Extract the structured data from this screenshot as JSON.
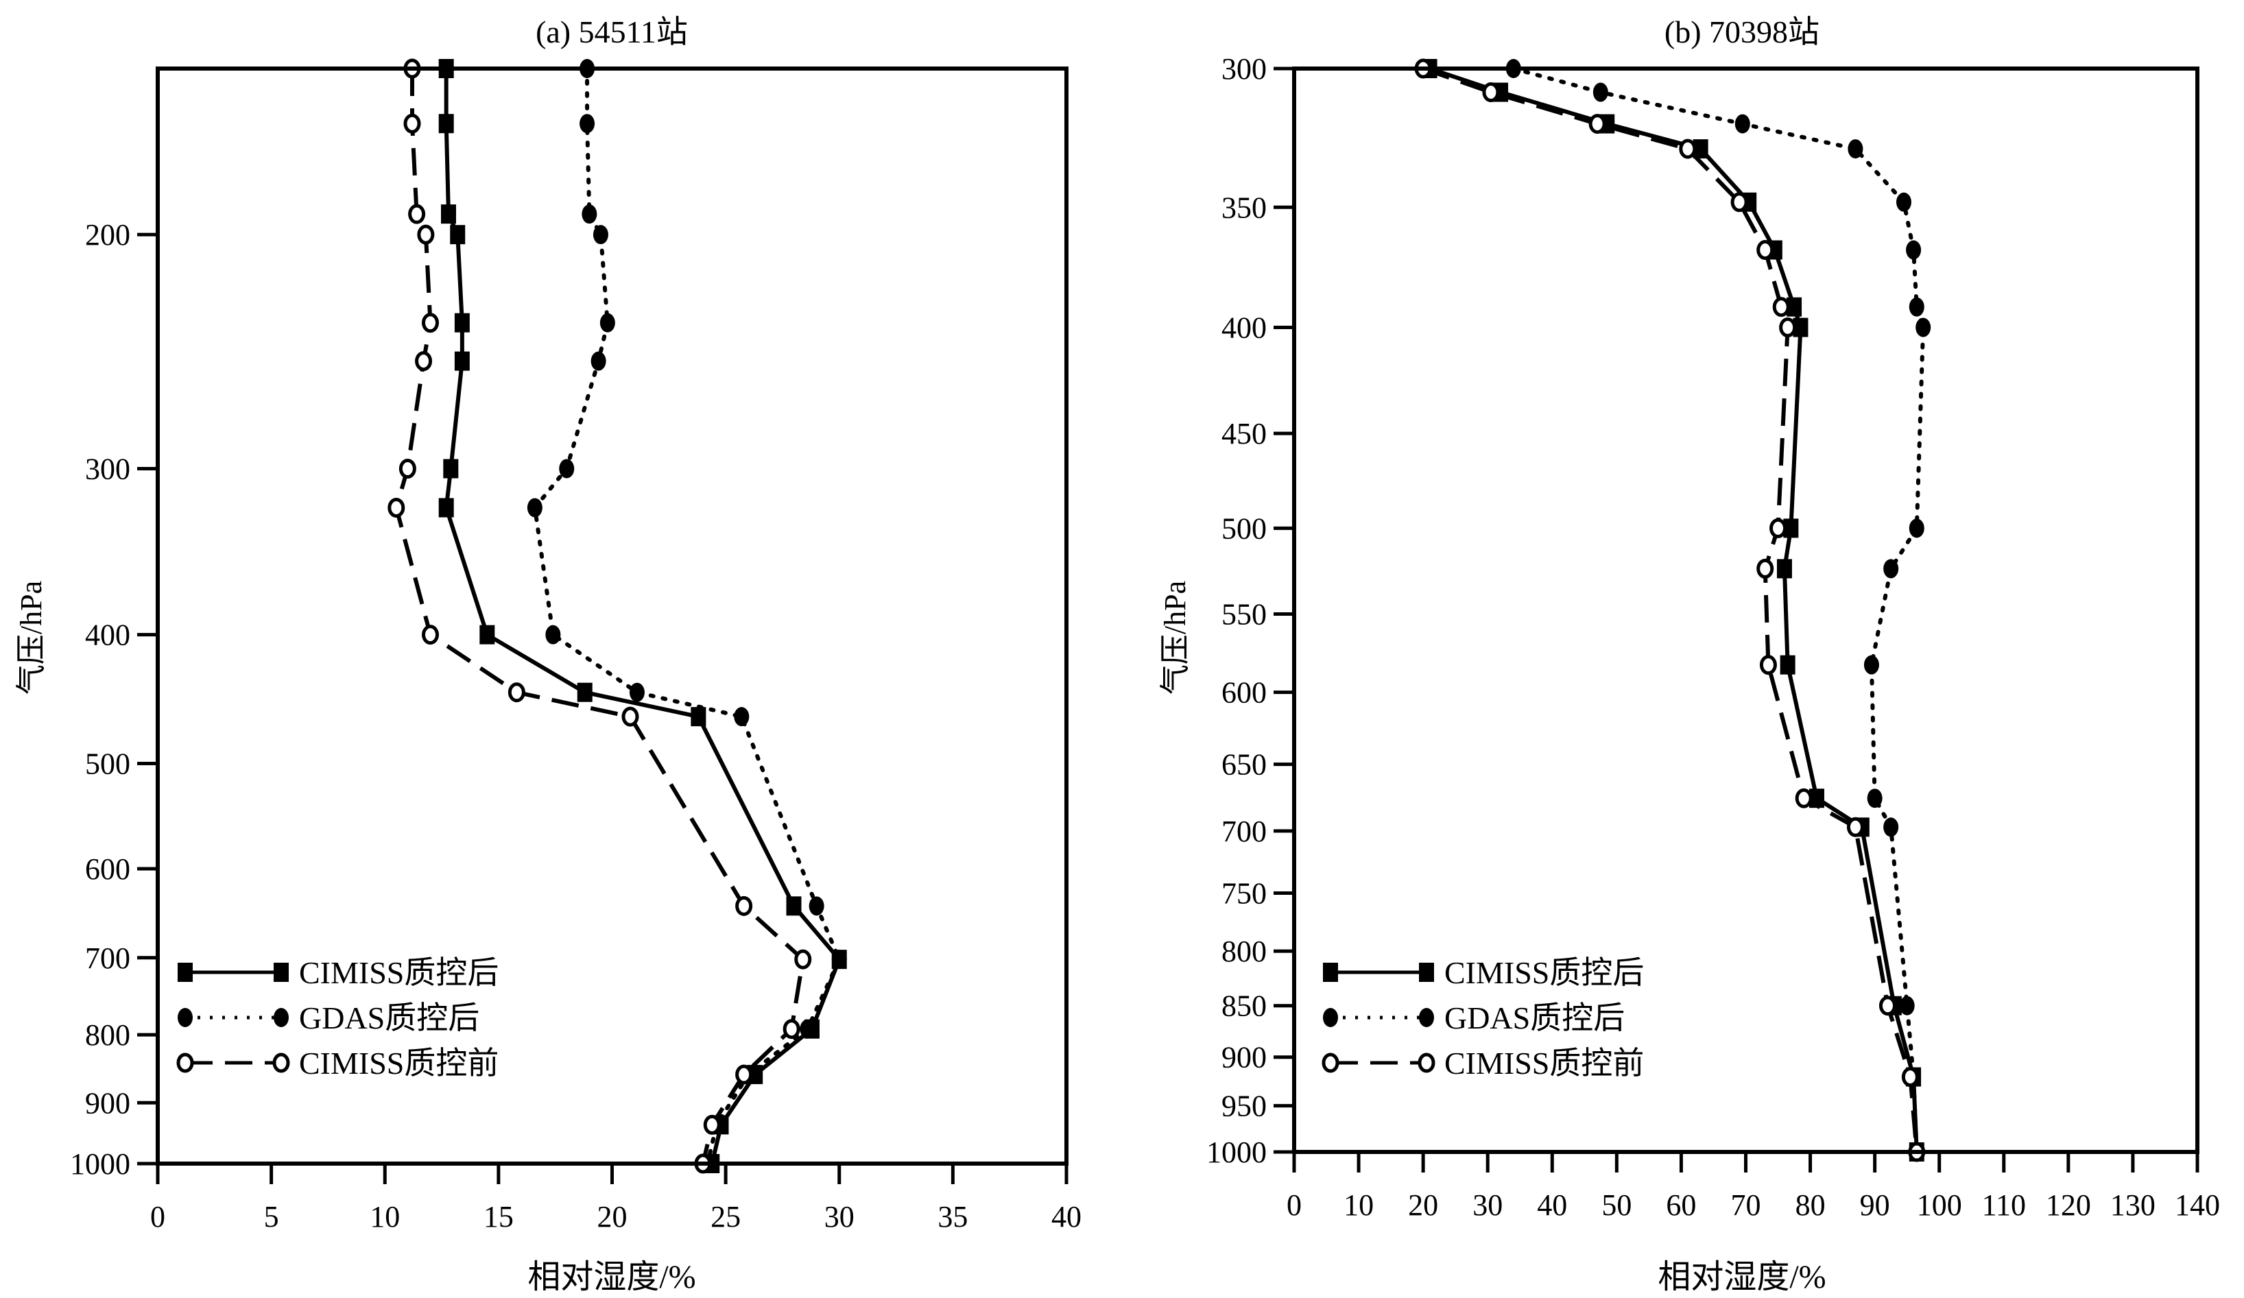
{
  "chart_data": [
    {
      "type": "line",
      "title": "(a) 54511站",
      "xlabel": "相对湿度/%",
      "ylabel": "气压/hPa",
      "xlim": [
        0,
        40
      ],
      "ylim": [
        150,
        1000
      ],
      "yscale": "log",
      "y_inverted": true,
      "xticks": [
        0,
        5,
        10,
        15,
        20,
        25,
        30,
        35,
        40
      ],
      "xtick_labels": [
        "0",
        "5",
        "10",
        "15",
        "20",
        "25",
        "30",
        "35",
        "40"
      ],
      "yticks": [
        200,
        300,
        400,
        500,
        600,
        700,
        800,
        900,
        1000
      ],
      "ytick_labels": [
        "200",
        "300",
        "400",
        "500",
        "600",
        "700",
        "800",
        "900",
        "1000"
      ],
      "grid": false,
      "legend_position": "bottom-left",
      "series": [
        {
          "name": "CIMISS质控后",
          "marker": "square",
          "line": "solid",
          "pressure": [
            150,
            165,
            193,
            200,
            233,
            249,
            300,
            321,
            400,
            442,
            461,
            640,
            702,
            792,
            857,
            935,
            1000
          ],
          "values": [
            12.7,
            12.7,
            12.8,
            13.2,
            13.4,
            13.4,
            12.9,
            12.7,
            14.5,
            18.8,
            23.8,
            28.0,
            30.0,
            28.8,
            26.3,
            24.8,
            24.4
          ]
        },
        {
          "name": "GDAS质控后",
          "marker": "filled-circle",
          "line": "dotted",
          "pressure": [
            150,
            165,
            193,
            200,
            233,
            249,
            300,
            321,
            400,
            442,
            461,
            640,
            702,
            792,
            857,
            935,
            1000
          ],
          "values": [
            18.9,
            18.9,
            19.0,
            19.5,
            19.8,
            19.4,
            18.0,
            16.6,
            17.4,
            21.1,
            25.7,
            29.0,
            30.0,
            28.6,
            26.0,
            24.6,
            24.2
          ]
        },
        {
          "name": "CIMISS质控前",
          "marker": "open-circle",
          "line": "dashed",
          "pressure": [
            150,
            165,
            193,
            200,
            233,
            249,
            300,
            321,
            400,
            442,
            461,
            640,
            702,
            792,
            857,
            935,
            1000
          ],
          "values": [
            11.2,
            11.2,
            11.4,
            11.8,
            12.0,
            11.7,
            11.0,
            10.5,
            12.0,
            15.8,
            20.8,
            25.8,
            28.4,
            27.9,
            25.8,
            24.4,
            24.0
          ]
        }
      ]
    },
    {
      "type": "line",
      "title": "(b) 70398站",
      "xlabel": "相对湿度/%",
      "ylabel": "气压/hPa",
      "xlim": [
        0,
        140
      ],
      "ylim": [
        300,
        1000
      ],
      "yscale": "log",
      "y_inverted": true,
      "xticks": [
        0,
        10,
        20,
        30,
        40,
        50,
        60,
        70,
        80,
        90,
        100,
        110,
        120,
        130,
        140
      ],
      "xtick_labels": [
        "0",
        "10",
        "20",
        "30",
        "40",
        "50",
        "60",
        "70",
        "80",
        "90",
        "100",
        "110",
        "120",
        "130",
        "140"
      ],
      "yticks": [
        300,
        350,
        400,
        450,
        500,
        550,
        600,
        650,
        700,
        750,
        800,
        850,
        900,
        950,
        1000
      ],
      "ytick_labels": [
        "300",
        "350",
        "400",
        "450",
        "500",
        "550",
        "600",
        "650",
        "700",
        "750",
        "800",
        "850",
        "900",
        "950",
        "1000"
      ],
      "grid": false,
      "legend_position": "bottom-left",
      "series": [
        {
          "name": "CIMISS质控后",
          "marker": "square",
          "line": "solid",
          "pressure": [
            300,
            308,
            319,
            328,
            348,
            367,
            391,
            400,
            500,
            523,
            582,
            675,
            697,
            850,
            920,
            1000
          ],
          "values": [
            21,
            32,
            48.5,
            63,
            70.5,
            74.5,
            77.5,
            78.5,
            77,
            76,
            76.5,
            81,
            88,
            93,
            96,
            96.5
          ]
        },
        {
          "name": "GDAS质控后",
          "marker": "filled-circle",
          "line": "dotted",
          "pressure": [
            300,
            308,
            319,
            328,
            348,
            367,
            391,
            400,
            500,
            523,
            582,
            675,
            697,
            850,
            920,
            1000
          ],
          "values": [
            34,
            47.5,
            69.5,
            87,
            94.5,
            96,
            96.5,
            97.5,
            96.5,
            92.5,
            89.5,
            90,
            92.5,
            95,
            96,
            96.5
          ]
        },
        {
          "name": "CIMISS质控前",
          "marker": "open-circle",
          "line": "dashed",
          "pressure": [
            300,
            308,
            319,
            328,
            348,
            367,
            391,
            400,
            500,
            523,
            582,
            675,
            697,
            850,
            920,
            1000
          ],
          "values": [
            20,
            30.5,
            47,
            61,
            69,
            73,
            75.5,
            76.5,
            75,
            73,
            73.5,
            79,
            87,
            92,
            95.5,
            96.5
          ]
        }
      ]
    }
  ]
}
